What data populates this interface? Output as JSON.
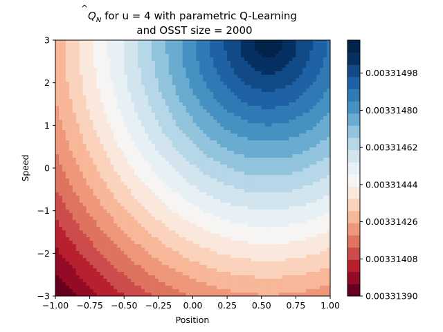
{
  "chart_data": {
    "type": "heatmap",
    "subtype": "filled-contour",
    "title_line1_prefix": "for u = 4 with parametric Q-Learning",
    "title_symbol": "Q",
    "title_subscript": "N",
    "title_line2": "and OSST size = 2000",
    "xlabel": "Position",
    "ylabel": "Speed",
    "xlim": [
      -1.0,
      1.0
    ],
    "ylim": [
      -3,
      3
    ],
    "x_ticks": [
      -1.0,
      -0.75,
      -0.5,
      -0.25,
      0.0,
      0.25,
      0.5,
      0.75,
      1.0
    ],
    "x_tick_labels": [
      "−1.00",
      "−0.75",
      "−0.50",
      "−0.25",
      "0.00",
      "0.25",
      "0.50",
      "0.75",
      "1.00"
    ],
    "y_ticks": [
      -3,
      -2,
      -1,
      0,
      1,
      2,
      3
    ],
    "y_tick_labels": [
      "−3",
      "−2",
      "−1",
      "0",
      "1",
      "2",
      "3"
    ],
    "colorbar": {
      "min": 0.0033139,
      "max": 0.00331514,
      "levels": 21,
      "tick_values": [
        0.0033139,
        0.00331408,
        0.00331426,
        0.00331444,
        0.00331462,
        0.0033148,
        0.00331498
      ],
      "tick_labels": [
        "0.00331390",
        "0.00331408",
        "0.00331426",
        "0.00331444",
        "0.00331462",
        "0.00331480",
        "0.00331498"
      ],
      "colors": [
        "#67001f",
        "#940b26",
        "#b8202f",
        "#cc4c4c",
        "#de735f",
        "#ee977a",
        "#f8b799",
        "#fbd2bc",
        "#fae8dd",
        "#f7f5f3",
        "#e7f0f4",
        "#d2e5ef",
        "#b6d7e8",
        "#93c4de",
        "#6aacd0",
        "#4592c2",
        "#2f79b5",
        "#1e61a5",
        "#114a87",
        "#053061",
        "#03244a"
      ]
    },
    "surface": {
      "description_free": true,
      "min_at": [
        -1.0,
        -3.0
      ],
      "max_at": [
        0.55,
        3.0
      ]
    }
  }
}
